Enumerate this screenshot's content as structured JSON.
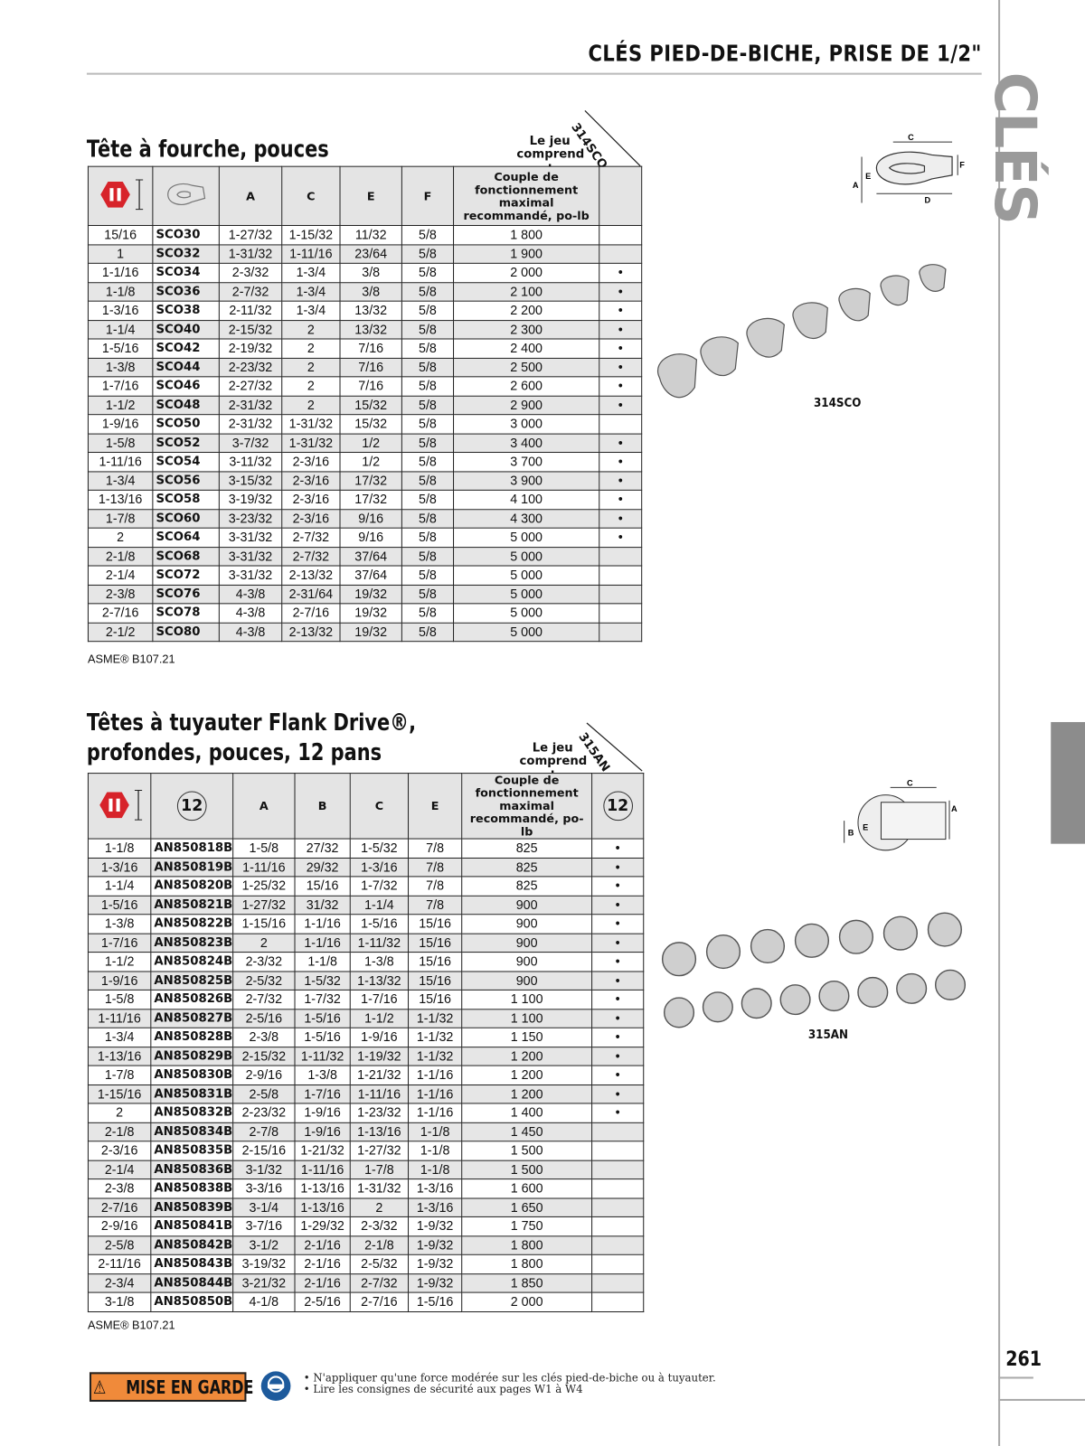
{
  "header": {
    "title": "CLÉS PIED-DE-BICHE, PRISE DE 1/2\"",
    "side_word": "CLÉS",
    "page_number": "261"
  },
  "colors": {
    "accent_red": "#d7232a",
    "warning_orange": "#f08a3a",
    "safety_blue": "#1d5a9c",
    "tab_gray": "#8c8c8c"
  },
  "section1": {
    "title": "Tête à fourche, pouces",
    "set_label": "Le jeu comprend :",
    "set_code": "314SCO",
    "image_caption": "314SCO",
    "icons": [
      "size-hex-icon",
      "crowfoot-icon"
    ],
    "columns": [
      "A",
      "C",
      "E",
      "F",
      "Couple de fonctionnement maximal recommandé, po-lb"
    ],
    "rows": [
      [
        "15/16",
        "SCO30",
        "1-27/32",
        "1-15/32",
        "11/32",
        "5/8",
        "1 800",
        ""
      ],
      [
        "1",
        "SCO32",
        "1-31/32",
        "1-11/16",
        "23/64",
        "5/8",
        "1 900",
        ""
      ],
      [
        "1-1/16",
        "SCO34",
        "2-3/32",
        "1-3/4",
        "3/8",
        "5/8",
        "2 000",
        "•"
      ],
      [
        "1-1/8",
        "SCO36",
        "2-7/32",
        "1-3/4",
        "3/8",
        "5/8",
        "2 100",
        "•"
      ],
      [
        "1-3/16",
        "SCO38",
        "2-11/32",
        "1-3/4",
        "13/32",
        "5/8",
        "2 200",
        "•"
      ],
      [
        "1-1/4",
        "SCO40",
        "2-15/32",
        "2",
        "13/32",
        "5/8",
        "2 300",
        "•"
      ],
      [
        "1-5/16",
        "SCO42",
        "2-19/32",
        "2",
        "7/16",
        "5/8",
        "2 400",
        "•"
      ],
      [
        "1-3/8",
        "SCO44",
        "2-23/32",
        "2",
        "7/16",
        "5/8",
        "2 500",
        "•"
      ],
      [
        "1-7/16",
        "SCO46",
        "2-27/32",
        "2",
        "7/16",
        "5/8",
        "2 600",
        "•"
      ],
      [
        "1-1/2",
        "SCO48",
        "2-31/32",
        "2",
        "15/32",
        "5/8",
        "2 900",
        "•"
      ],
      [
        "1-9/16",
        "SCO50",
        "2-31/32",
        "1-31/32",
        "15/32",
        "5/8",
        "3 000",
        ""
      ],
      [
        "1-5/8",
        "SCO52",
        "3-7/32",
        "1-31/32",
        "1/2",
        "5/8",
        "3 400",
        "•"
      ],
      [
        "1-11/16",
        "SCO54",
        "3-11/32",
        "2-3/16",
        "1/2",
        "5/8",
        "3 700",
        "•"
      ],
      [
        "1-3/4",
        "SCO56",
        "3-15/32",
        "2-3/16",
        "17/32",
        "5/8",
        "3 900",
        "•"
      ],
      [
        "1-13/16",
        "SCO58",
        "3-19/32",
        "2-3/16",
        "17/32",
        "5/8",
        "4 100",
        "•"
      ],
      [
        "1-7/8",
        "SCO60",
        "3-23/32",
        "2-3/16",
        "9/16",
        "5/8",
        "4 300",
        "•"
      ],
      [
        "2",
        "SCO64",
        "3-31/32",
        "2-7/32",
        "9/16",
        "5/8",
        "5 000",
        "•"
      ],
      [
        "2-1/8",
        "SCO68",
        "3-31/32",
        "2-7/32",
        "37/64",
        "5/8",
        "5 000",
        ""
      ],
      [
        "2-1/4",
        "SCO72",
        "3-31/32",
        "2-13/32",
        "37/64",
        "5/8",
        "5 000",
        ""
      ],
      [
        "2-3/8",
        "SCO76",
        "4-3/8",
        "2-31/64",
        "19/32",
        "5/8",
        "5 000",
        ""
      ],
      [
        "2-7/16",
        "SCO78",
        "4-3/8",
        "2-7/16",
        "19/32",
        "5/8",
        "5 000",
        ""
      ],
      [
        "2-1/2",
        "SCO80",
        "4-3/8",
        "2-13/32",
        "19/32",
        "5/8",
        "5 000",
        ""
      ]
    ],
    "footnote": "ASME® B107.21"
  },
  "section2": {
    "title_line1": "Têtes à tuyauter Flank Drive®,",
    "title_line2": "profondes, pouces, 12 pans",
    "set_label": "Le jeu comprend :",
    "set_code": "315AN",
    "image_caption": "315AN",
    "point_label": "12",
    "columns": [
      "A",
      "B",
      "C",
      "E",
      "Couple de fonctionnement maximal recommandé,  po-lb"
    ],
    "rows": [
      [
        "1-1/8",
        "AN850818B",
        "1-5/8",
        "27/32",
        "1-5/32",
        "7/8",
        "825",
        "•"
      ],
      [
        "1-3/16",
        "AN850819B",
        "1-11/16",
        "29/32",
        "1-3/16",
        "7/8",
        "825",
        "•"
      ],
      [
        "1-1/4",
        "AN850820B",
        "1-25/32",
        "15/16",
        "1-7/32",
        "7/8",
        "825",
        "•"
      ],
      [
        "1-5/16",
        "AN850821B",
        "1-27/32",
        "31/32",
        "1-1/4",
        "7/8",
        "900",
        "•"
      ],
      [
        "1-3/8",
        "AN850822B",
        "1-15/16",
        "1-1/16",
        "1-5/16",
        "15/16",
        "900",
        "•"
      ],
      [
        "1-7/16",
        "AN850823B",
        "2",
        "1-1/16",
        "1-11/32",
        "15/16",
        "900",
        "•"
      ],
      [
        "1-1/2",
        "AN850824B",
        "2-3/32",
        "1-1/8",
        "1-3/8",
        "15/16",
        "900",
        "•"
      ],
      [
        "1-9/16",
        "AN850825B",
        "2-5/32",
        "1-5/32",
        "1-13/32",
        "15/16",
        "900",
        "•"
      ],
      [
        "1-5/8",
        "AN850826B",
        "2-7/32",
        "1-7/32",
        "1-7/16",
        "15/16",
        "1 100",
        "•"
      ],
      [
        "1-11/16",
        "AN850827B",
        "2-5/16",
        "1-5/16",
        "1-1/2",
        "1-1/32",
        "1 100",
        "•"
      ],
      [
        "1-3/4",
        "AN850828B",
        "2-3/8",
        "1-5/16",
        "1-9/16",
        "1-1/32",
        "1 150",
        "•"
      ],
      [
        "1-13/16",
        "AN850829B",
        "2-15/32",
        "1-11/32",
        "1-19/32",
        "1-1/32",
        "1 200",
        "•"
      ],
      [
        "1-7/8",
        "AN850830B",
        "2-9/16",
        "1-3/8",
        "1-21/32",
        "1-1/16",
        "1 200",
        "•"
      ],
      [
        "1-15/16",
        "AN850831B",
        "2-5/8",
        "1-7/16",
        "1-11/16",
        "1-1/16",
        "1 200",
        "•"
      ],
      [
        "2",
        "AN850832B",
        "2-23/32",
        "1-9/16",
        "1-23/32",
        "1-1/16",
        "1 400",
        "•"
      ],
      [
        "2-1/8",
        "AN850834B",
        "2-7/8",
        "1-9/16",
        "1-13/16",
        "1-1/8",
        "1 450",
        ""
      ],
      [
        "2-3/16",
        "AN850835B",
        "2-15/16",
        "1-21/32",
        "1-27/32",
        "1-1/8",
        "1 500",
        ""
      ],
      [
        "2-1/4",
        "AN850836B",
        "3-1/32",
        "1-11/16",
        "1-7/8",
        "1-1/8",
        "1 500",
        ""
      ],
      [
        "2-3/8",
        "AN850838B",
        "3-3/16",
        "1-13/16",
        "1-31/32",
        "1-3/16",
        "1 600",
        ""
      ],
      [
        "2-7/16",
        "AN850839B",
        "3-1/4",
        "1-13/16",
        "2",
        "1-3/16",
        "1 650",
        ""
      ],
      [
        "2-9/16",
        "AN850841B",
        "3-7/16",
        "1-29/32",
        "2-3/32",
        "1-9/32",
        "1 750",
        ""
      ],
      [
        "2-5/8",
        "AN850842B",
        "3-1/2",
        "2-1/16",
        "2-1/8",
        "1-9/32",
        "1 800",
        ""
      ],
      [
        "2-11/16",
        "AN850843B",
        "3-19/32",
        "2-1/16",
        "2-5/32",
        "1-9/32",
        "1 800",
        ""
      ],
      [
        "2-3/4",
        "AN850844B",
        "3-21/32",
        "2-1/16",
        "2-7/32",
        "1-9/32",
        "1 850",
        ""
      ],
      [
        "3-1/8",
        "AN850850B",
        "4-1/8",
        "2-5/16",
        "2-7/16",
        "1-5/16",
        "2 000",
        ""
      ]
    ],
    "footnote": "ASME® B107.21"
  },
  "diagram_labels": {
    "fig1": [
      "C",
      "E",
      "A",
      "F",
      "D"
    ],
    "fig2": [
      "C",
      "B",
      "E",
      "A"
    ]
  },
  "footer": {
    "warning_label": "MISE EN GARDE",
    "safety_lines": [
      "• N'appliquer qu'une force modérée sur les clés pied-de-biche ou à tuyauter.",
      "• Lire les consignes de sécurité aux pages W1 à W4"
    ]
  }
}
